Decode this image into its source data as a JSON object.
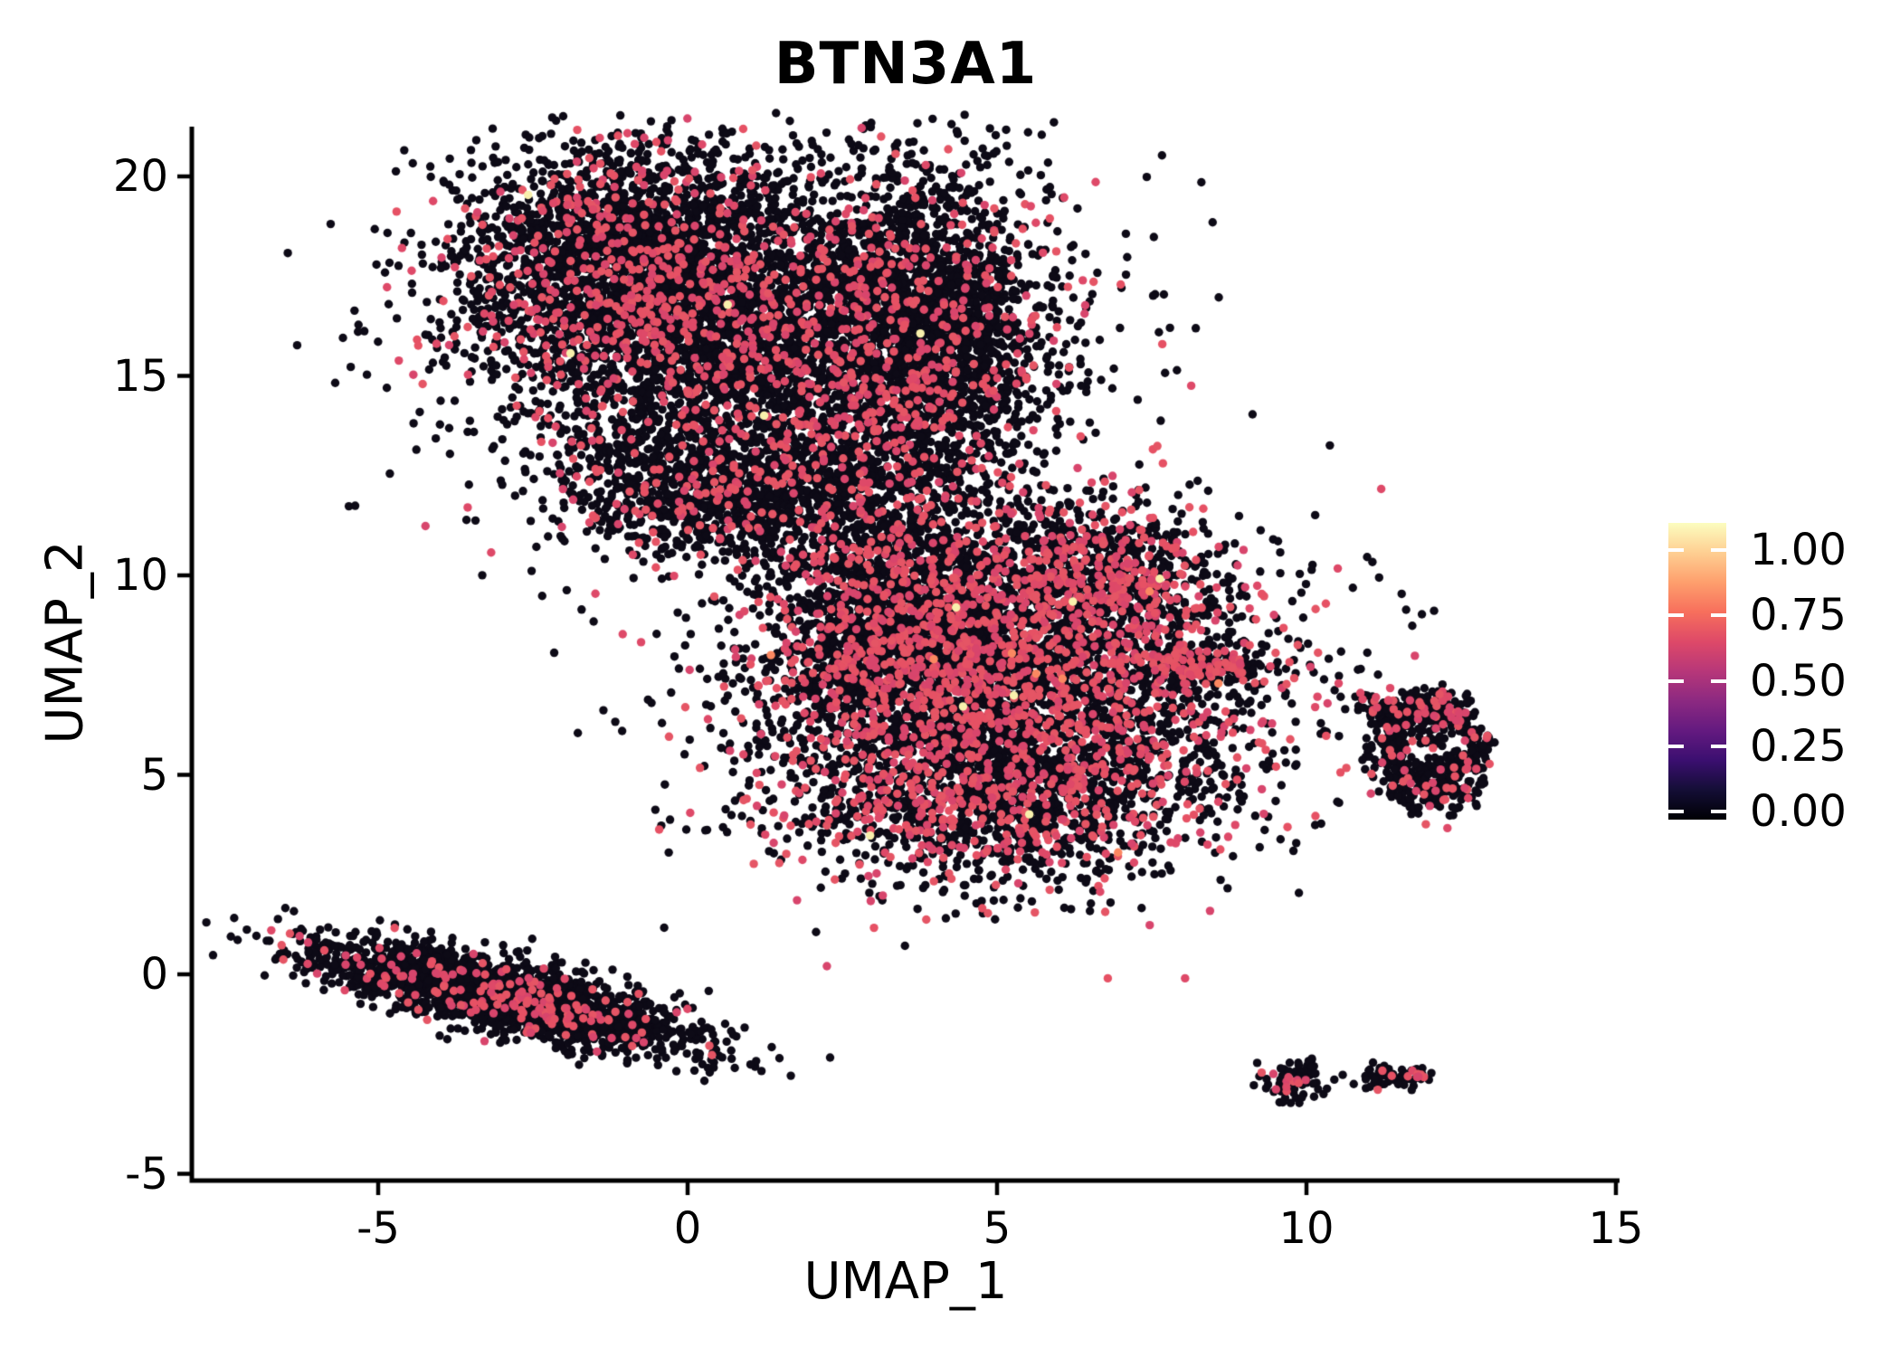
{
  "chart_data": {
    "type": "scatter",
    "variant": "umap-feature-plot",
    "title": "BTN3A1",
    "xlabel": "UMAP_1",
    "ylabel": "UMAP_2",
    "x_ticks": [
      "-5",
      "0",
      "5",
      "10",
      "15"
    ],
    "x_tick_values": [
      -5,
      0,
      5,
      10,
      15
    ],
    "y_ticks": [
      "20",
      "15",
      "10",
      "5",
      "0",
      "-5"
    ],
    "y_tick_values": [
      20,
      15,
      10,
      5,
      0,
      -5
    ],
    "x_range": [
      -8,
      15
    ],
    "y_range": [
      -5,
      20.5
    ],
    "grid": false,
    "legend": {
      "position": "right",
      "tick_labels": [
        "1.00",
        "0.75",
        "0.50",
        "0.25",
        "0.00"
      ],
      "colormap": "magma",
      "gradient_stops_bottom_to_top": [
        "#000004",
        "#140E36",
        "#3B0F70",
        "#641A80",
        "#8C2981",
        "#B73779",
        "#DE4968",
        "#F76F5C",
        "#FE9F6D",
        "#FECF92",
        "#FCFDBF"
      ]
    },
    "point_colors": {
      "zero_expression": "#0D0A16",
      "mid_expression_palette": [
        "#D8456C",
        "#DE4968",
        "#E65164",
        "#E55565"
      ],
      "high_expression": "#FB8861",
      "top_expression": "#F8F0AC"
    },
    "clusters": [
      {
        "name": "upper-blob-left",
        "type": "gauss",
        "cx": -0.9,
        "cy": 17.6,
        "sx": 1.45,
        "sy": 1.65,
        "n": 2700,
        "frac_mid": 0.15,
        "frac_top": 0.001
      },
      {
        "name": "upper-blob-core",
        "type": "gauss",
        "cx": 1.55,
        "cy": 15.8,
        "sx": 1.95,
        "sy": 2.0,
        "n": 2700,
        "frac_mid": 0.17,
        "frac_top": 0.001
      },
      {
        "name": "upper-blob-right",
        "type": "gauss",
        "cx": 3.85,
        "cy": 15.9,
        "sx": 0.95,
        "sy": 2.2,
        "n": 1900,
        "frac_mid": 0.12,
        "frac_top": 0.001
      },
      {
        "name": "upper-blob-lower-lobe",
        "type": "gauss",
        "cx": 0.55,
        "cy": 12.1,
        "sx": 1.35,
        "sy": 0.85,
        "n": 950,
        "frac_mid": 0.13
      },
      {
        "name": "upper-blob-halo",
        "type": "gauss",
        "cx": 1.2,
        "cy": 15.9,
        "sx": 2.8,
        "sy": 2.9,
        "n": 650,
        "frac_mid": 0.12
      },
      {
        "name": "bridge-sparse",
        "type": "gauss",
        "cx": 2.6,
        "cy": 12.4,
        "sx": 0.85,
        "sy": 1.0,
        "n": 140,
        "frac_mid": 0.1
      },
      {
        "name": "neck",
        "type": "gauss",
        "cx": 3.4,
        "cy": 10.4,
        "sx": 1.0,
        "sy": 1.3,
        "n": 400,
        "frac_mid": 0.12
      },
      {
        "name": "middle-blob-core",
        "type": "gauss",
        "cx": 5.2,
        "cy": 7.2,
        "sx": 2.1,
        "sy": 2.1,
        "n": 4300,
        "frac_mid": 0.27,
        "frac_high": 0.001,
        "frac_top": 0.001
      },
      {
        "name": "middle-blob-left",
        "type": "gauss",
        "cx": 3.5,
        "cy": 8.6,
        "sx": 1.0,
        "sy": 1.3,
        "n": 1100,
        "frac_mid": 0.22
      },
      {
        "name": "middle-blob-upper-right",
        "type": "gauss",
        "cx": 6.6,
        "cy": 10.1,
        "sx": 0.9,
        "sy": 0.8,
        "n": 650,
        "frac_mid": 0.3
      },
      {
        "name": "middle-blob-bottom",
        "type": "gauss",
        "cx": 4.9,
        "cy": 4.2,
        "sx": 1.6,
        "sy": 1.0,
        "n": 900,
        "frac_mid": 0.24,
        "frac_top": 0.002
      },
      {
        "name": "middle-blob-right-tip",
        "type": "line",
        "x1": 7.5,
        "y1": 7.9,
        "x2": 9.1,
        "y2": 7.5,
        "jitter": 0.22,
        "n": 190,
        "frac_mid": 0.33
      },
      {
        "name": "right-ring",
        "type": "ring",
        "cx": 12.0,
        "cy": 5.7,
        "rx": 0.72,
        "ry": 1.05,
        "thickness": 0.22,
        "n": 420,
        "inner_n": 8,
        "frac_mid": 0.1
      },
      {
        "name": "right-ring-bottom",
        "type": "gauss",
        "cx": 12.05,
        "cy": 4.85,
        "sx": 0.45,
        "sy": 0.45,
        "n": 130,
        "frac_mid": 0.08
      },
      {
        "name": "right-ring-top",
        "type": "gauss",
        "cx": 11.9,
        "cy": 6.6,
        "sx": 0.35,
        "sy": 0.3,
        "n": 90,
        "frac_mid": 0.35
      },
      {
        "name": "right-ring-tail",
        "type": "line",
        "x1": 10.85,
        "y1": 6.9,
        "x2": 11.5,
        "y2": 6.35,
        "jitter": 0.15,
        "n": 70,
        "frac_mid": 0.12
      },
      {
        "name": "lower-left-streak",
        "type": "gauss",
        "cx": -2.95,
        "cy": -0.55,
        "sx": 1.5,
        "sy": 0.4,
        "angle_deg": -20,
        "n": 2500,
        "frac_mid": 0.07
      },
      {
        "name": "bottom-small-left",
        "type": "gauss",
        "cx": 9.8,
        "cy": -2.7,
        "sx": 0.26,
        "sy": 0.24,
        "n": 90,
        "frac_mid": 0.1
      },
      {
        "name": "bottom-small-left-red-clump",
        "type": "gauss",
        "cx": 9.78,
        "cy": -2.72,
        "sx": 0.09,
        "sy": 0.08,
        "n": 7,
        "frac_mid": 1.0
      },
      {
        "name": "bottom-small-right",
        "type": "gauss",
        "cx": 11.35,
        "cy": -2.6,
        "sx": 0.3,
        "sy": 0.13,
        "n": 60,
        "frac_mid": 0.05
      },
      {
        "name": "bottom-small-right-red-clump",
        "type": "gauss",
        "cx": 11.78,
        "cy": -2.5,
        "sx": 0.07,
        "sy": 0.06,
        "n": 6,
        "frac_mid": 1.0
      }
    ],
    "singles": [
      {
        "x": 6.7,
        "y": 3.7,
        "level": "mid"
      },
      {
        "x": 10.45,
        "y": -2.64,
        "level": "zero"
      },
      {
        "x": 8.75,
        "y": 8.3,
        "level": "zero"
      },
      {
        "x": 2.1,
        "y": 11.3,
        "level": "zero"
      },
      {
        "x": 0.3,
        "y": 11.0,
        "level": "zero"
      }
    ]
  }
}
